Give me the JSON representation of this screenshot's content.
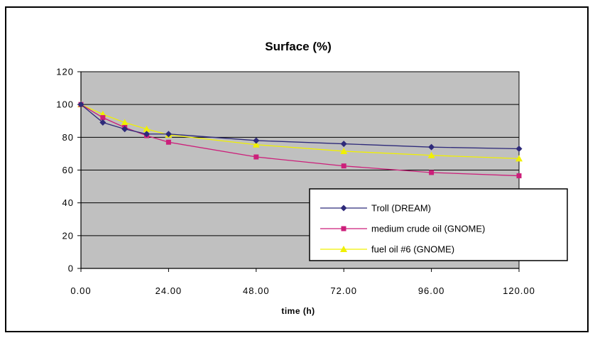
{
  "chart_data": {
    "type": "line",
    "title": "Surface (%)",
    "xlabel": "time (h)",
    "ylabel": "",
    "xlim": [
      0,
      120
    ],
    "ylim": [
      0,
      120
    ],
    "x_ticks": [
      "0.00",
      "24.00",
      "48.00",
      "72.00",
      "96.00",
      "120.00"
    ],
    "x_tick_values": [
      0,
      24,
      48,
      72,
      96,
      120
    ],
    "y_ticks": [
      "0",
      "20",
      "40",
      "60",
      "80",
      "100",
      "120"
    ],
    "y_tick_values": [
      0,
      20,
      40,
      60,
      80,
      100,
      120
    ],
    "grid": "horizontal",
    "plot_background": "#c0c0c0",
    "legend_position": "bottom-right",
    "series": [
      {
        "name": "Troll (DREAM)",
        "color": "#2e2a7a",
        "marker": "diamond",
        "points": [
          [
            0,
            100
          ],
          [
            6,
            89
          ],
          [
            12,
            85
          ],
          [
            18,
            82
          ],
          [
            24,
            82
          ],
          [
            48,
            78
          ],
          [
            72,
            76
          ],
          [
            96,
            74
          ],
          [
            120,
            73
          ]
        ]
      },
      {
        "name": "medium crude oil (GNOME)",
        "color": "#cc1f7a",
        "marker": "square",
        "points": [
          [
            0,
            100
          ],
          [
            6,
            92
          ],
          [
            12,
            86
          ],
          [
            18,
            81
          ],
          [
            24,
            77
          ],
          [
            48,
            68
          ],
          [
            72,
            62.5
          ],
          [
            96,
            58.5
          ],
          [
            120,
            56.5
          ]
        ]
      },
      {
        "name": "fuel oil #6 (GNOME)",
        "color": "#f0f000",
        "marker": "triangle",
        "points": [
          [
            0,
            100
          ],
          [
            6,
            94
          ],
          [
            12,
            89
          ],
          [
            18,
            85
          ],
          [
            24,
            81.5
          ],
          [
            48,
            75.5
          ],
          [
            72,
            71.5
          ],
          [
            96,
            69
          ],
          [
            120,
            67
          ]
        ]
      }
    ]
  }
}
